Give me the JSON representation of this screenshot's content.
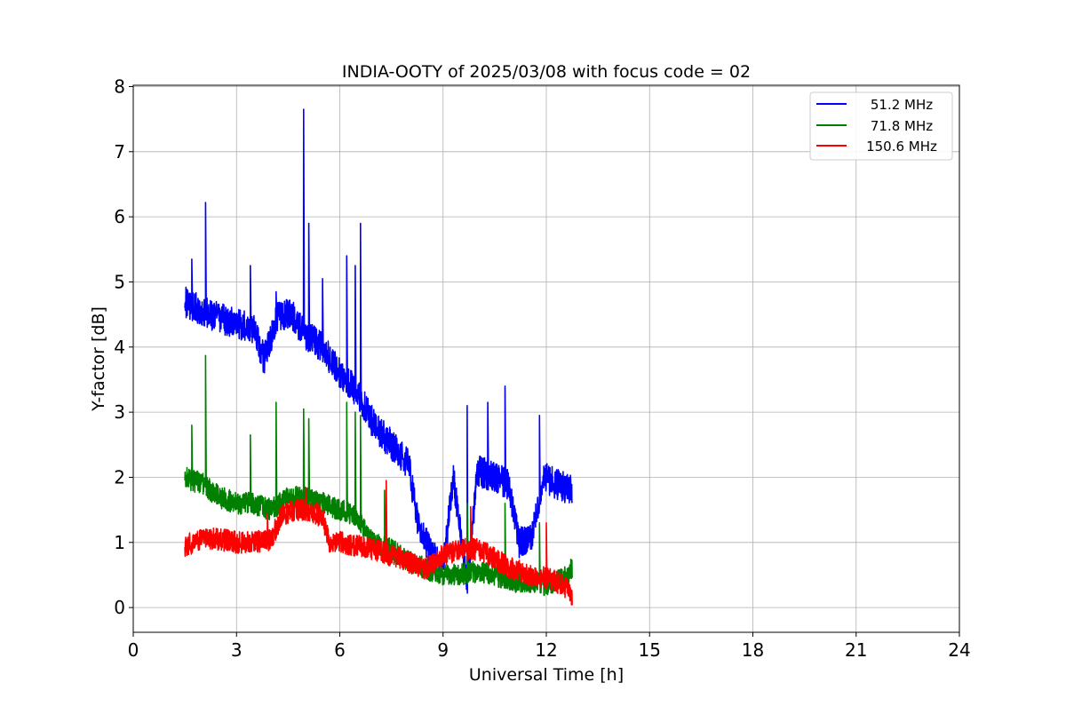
{
  "chart_data": {
    "type": "line",
    "title": "INDIA-OOTY of 2025/03/08 with focus code = 02",
    "xlabel": "Universal Time [h]",
    "ylabel": "Y-factor [dB]",
    "xlim": [
      0,
      24
    ],
    "ylim": [
      -0.38,
      8.02
    ],
    "xticks": [
      0,
      3,
      6,
      9,
      12,
      15,
      18,
      21,
      24
    ],
    "yticks": [
      0,
      1,
      2,
      3,
      4,
      5,
      6,
      7,
      8
    ],
    "grid": true,
    "legend_position": "top-right",
    "series": [
      {
        "name": "51.2 MHz",
        "color": "#0000ff",
        "x": [
          1.5,
          2.0,
          2.5,
          3.0,
          3.5,
          3.8,
          4.2,
          4.6,
          5.0,
          5.5,
          6.0,
          6.5,
          7.0,
          7.5,
          8.0,
          8.3,
          8.7,
          9.0,
          9.3,
          9.7,
          10.0,
          10.5,
          10.9,
          11.2,
          11.6,
          11.9,
          12.3,
          12.75
        ],
        "y": [
          4.7,
          4.55,
          4.45,
          4.35,
          4.3,
          3.8,
          4.5,
          4.5,
          4.2,
          4.0,
          3.6,
          3.3,
          2.8,
          2.5,
          2.2,
          1.2,
          0.8,
          0.6,
          2.0,
          0.4,
          2.1,
          2.0,
          1.9,
          1.0,
          1.1,
          2.0,
          1.9,
          1.8
        ],
        "spikes": [
          [
            1.7,
            5.35
          ],
          [
            2.1,
            6.22
          ],
          [
            3.4,
            5.25
          ],
          [
            4.15,
            4.85
          ],
          [
            4.95,
            7.65
          ],
          [
            5.1,
            5.9
          ],
          [
            5.5,
            5.05
          ],
          [
            6.2,
            5.4
          ],
          [
            6.45,
            5.25
          ],
          [
            6.6,
            5.9
          ],
          [
            9.7,
            3.1
          ],
          [
            10.3,
            3.15
          ],
          [
            10.8,
            3.4
          ],
          [
            11.8,
            2.95
          ]
        ]
      },
      {
        "name": "71.8 MHz",
        "color": "#008000",
        "x": [
          1.5,
          2.0,
          2.5,
          3.0,
          3.5,
          4.0,
          4.5,
          5.0,
          5.5,
          6.0,
          6.5,
          7.0,
          7.5,
          8.0,
          8.5,
          9.0,
          9.5,
          10.0,
          10.5,
          11.0,
          11.5,
          12.0,
          12.5,
          12.75
        ],
        "y": [
          2.0,
          1.9,
          1.7,
          1.6,
          1.6,
          1.5,
          1.7,
          1.7,
          1.6,
          1.5,
          1.4,
          1.0,
          0.9,
          0.7,
          0.6,
          0.5,
          0.5,
          0.55,
          0.5,
          0.4,
          0.4,
          0.35,
          0.45,
          0.6
        ],
        "spikes": [
          [
            1.7,
            2.8
          ],
          [
            2.1,
            3.87
          ],
          [
            3.4,
            2.65
          ],
          [
            4.15,
            3.15
          ],
          [
            4.95,
            3.05
          ],
          [
            5.1,
            2.9
          ],
          [
            6.2,
            3.15
          ],
          [
            6.45,
            3.0
          ],
          [
            6.6,
            2.95
          ],
          [
            7.3,
            1.8
          ],
          [
            9.7,
            1.6
          ],
          [
            10.8,
            1.6
          ],
          [
            11.8,
            1.3
          ]
        ]
      },
      {
        "name": "150.6 MHz",
        "color": "#ff0000",
        "x": [
          1.5,
          2.0,
          2.5,
          3.0,
          3.5,
          4.0,
          4.3,
          4.7,
          5.0,
          5.5,
          5.7,
          6.0,
          6.5,
          7.0,
          7.5,
          8.0,
          8.5,
          9.0,
          9.5,
          10.0,
          10.5,
          11.0,
          11.5,
          12.0,
          12.5,
          12.75
        ],
        "y": [
          0.95,
          1.05,
          1.05,
          1.0,
          1.0,
          1.05,
          1.4,
          1.5,
          1.5,
          1.4,
          1.0,
          1.0,
          0.95,
          0.9,
          0.8,
          0.7,
          0.6,
          0.8,
          0.9,
          0.9,
          0.75,
          0.6,
          0.5,
          0.45,
          0.35,
          0.2
        ],
        "spikes": [
          [
            3.9,
            1.45
          ],
          [
            5.0,
            1.85
          ],
          [
            7.35,
            1.95
          ],
          [
            9.8,
            1.55
          ],
          [
            12.0,
            1.3
          ]
        ]
      }
    ]
  }
}
